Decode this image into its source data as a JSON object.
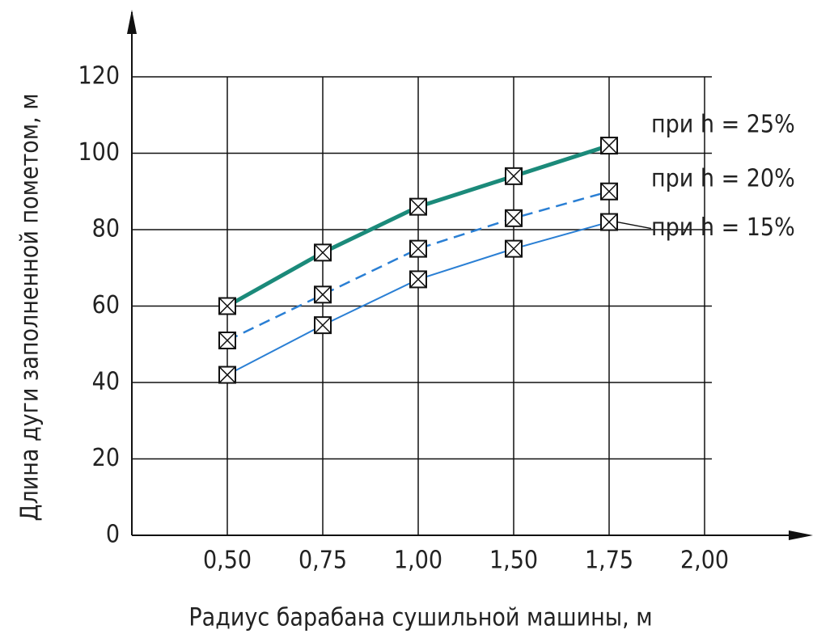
{
  "chart_data": {
    "type": "line",
    "xlabel": "Радиус барабана сушильной машины, м",
    "ylabel": "Длина дуги заполненной пометом, м",
    "categories": [
      "0,50",
      "0,75",
      "1,00",
      "1,50",
      "1,75",
      "2,00"
    ],
    "series": [
      {
        "name": "при h = 25%",
        "color": "#1b8a7a",
        "values": [
          60,
          74,
          86,
          94,
          102,
          null
        ]
      },
      {
        "name": "при h = 20%",
        "color": "#2a7fd4",
        "values": [
          51,
          63,
          75,
          83,
          90,
          null
        ]
      },
      {
        "name": "при h = 15%",
        "color": "#2a7fd4",
        "values": [
          42,
          55,
          67,
          75,
          82,
          null
        ]
      }
    ],
    "ylim": [
      0,
      120
    ],
    "yticks": [
      0,
      20,
      40,
      60,
      80,
      100,
      120
    ],
    "grid": true
  }
}
